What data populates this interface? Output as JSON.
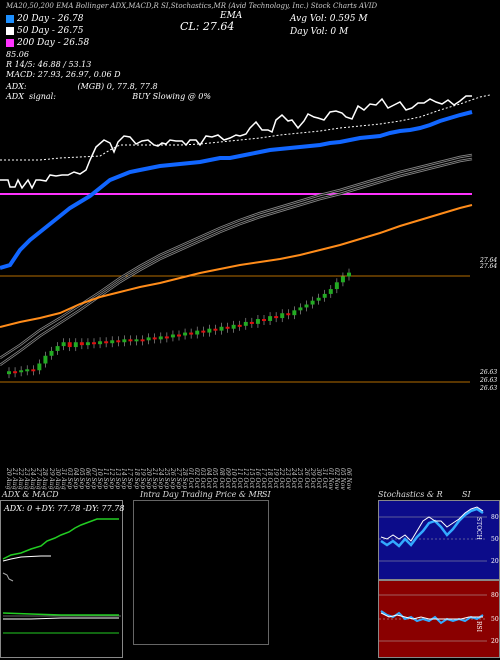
{
  "header": {
    "topline": "MA20,50,200 EMA Bollinger ADX,MACD,R SI,Stochastics,MR (Avid Technology, Inc.) Stock Charts AVID",
    "ema_title": "EMA",
    "close_label": "CL: 27.64",
    "avg_volume": "Avg Vol: 0.595 M",
    "day_volume": "Day Vol: 0   M"
  },
  "legend": [
    {
      "text": "20 Day - 26.78",
      "color": "#ffffff"
    },
    {
      "text": "50 Day - 26.75",
      "color": "#ffffff"
    },
    {
      "text": "200 Day - 26.58",
      "color": "#ffffff"
    }
  ],
  "indicators": {
    "line1": "85.06",
    "line2": "R 14/5: 46.88 / 53.13",
    "line3": "MACD: 27.93, 26.97, 0.06 D",
    "line4": "ADX:                    (MGB) 0, 77.8, 77.8",
    "line5": "ADX  signal:                              BUY Slowing @ 0%"
  },
  "price_axis": {
    "label_top": "27.64",
    "label_top2": "27.64",
    "label_b1": "26.63",
    "label_b2": "26.63",
    "label_b3": "26.63"
  },
  "dates": [
    "20 Aug",
    "21 Aug",
    "22 Aug",
    "23 Aug",
    "24 Aug",
    "27 Aug",
    "28 Aug",
    "29 Aug",
    "30 Aug",
    "31 Aug",
    "03 Sep",
    "04 Sep",
    "05 Sep",
    "06 Sep",
    "07 Sep",
    "10 Sep",
    "11 Sep",
    "12 Sep",
    "13 Sep",
    "14 Sep",
    "17 Sep",
    "18 Sep",
    "19 Sep",
    "20 Sep",
    "21 Sep",
    "24 Sep",
    "25 Sep",
    "26 Sep",
    "27 Sep",
    "28 Sep",
    "01 Oct",
    "02 Oct",
    "03 Oct",
    "04 Oct",
    "05 Oct",
    "08 Oct",
    "09 Oct",
    "10 Oct",
    "11 Oct",
    "12 Oct",
    "15 Oct",
    "16 Oct",
    "17 Oct",
    "18 Oct",
    "19 Oct",
    "22 Oct",
    "23 Oct",
    "24 Oct",
    "25 Oct",
    "26 Oct",
    "29 Oct",
    "30 Oct",
    "31 Oct",
    "01 Nov",
    "02 Nov",
    "05 Nov",
    "06 Nov"
  ],
  "panels": {
    "adx": {
      "title": "ADX  & MACD",
      "values": "ADX: 0  +DY: 77.78  -DY: 77.78"
    },
    "intra": {
      "title": "Intra  Day Trading Price  & MR",
      "suffix": "SI"
    },
    "stoch": {
      "title": "Stochastics & R",
      "suffix": "SI"
    }
  },
  "stoch_axis": {
    "upper": [
      "80",
      "50",
      "20"
    ],
    "upper_label": "STOCH",
    "lower": [
      "80",
      "50",
      "20"
    ],
    "lower_label": "RSI"
  },
  "chart_data": {
    "type": "candlestick",
    "candles": [
      {
        "o": 26.59,
        "c": 26.62
      },
      {
        "o": 26.62,
        "c": 26.6
      },
      {
        "o": 26.61,
        "c": 26.63
      },
      {
        "o": 26.63,
        "c": 26.64
      },
      {
        "o": 26.64,
        "c": 26.63
      },
      {
        "o": 26.63,
        "c": 26.7
      },
      {
        "o": 26.7,
        "c": 26.78
      },
      {
        "o": 26.78,
        "c": 26.83
      },
      {
        "o": 26.83,
        "c": 26.88
      },
      {
        "o": 26.88,
        "c": 26.92
      },
      {
        "o": 26.92,
        "c": 26.87
      },
      {
        "o": 26.87,
        "c": 26.92
      },
      {
        "o": 26.92,
        "c": 26.89
      },
      {
        "o": 26.89,
        "c": 26.92
      },
      {
        "o": 26.92,
        "c": 26.9
      },
      {
        "o": 26.9,
        "c": 26.93
      },
      {
        "o": 26.93,
        "c": 26.91
      },
      {
        "o": 26.91,
        "c": 26.94
      },
      {
        "o": 26.94,
        "c": 26.92
      },
      {
        "o": 26.92,
        "c": 26.95
      },
      {
        "o": 26.95,
        "c": 26.93
      },
      {
        "o": 26.93,
        "c": 26.95
      },
      {
        "o": 26.95,
        "c": 26.94
      },
      {
        "o": 26.94,
        "c": 26.97
      },
      {
        "o": 26.97,
        "c": 26.95
      },
      {
        "o": 26.95,
        "c": 26.98
      },
      {
        "o": 26.98,
        "c": 26.97
      },
      {
        "o": 26.97,
        "c": 27.0
      },
      {
        "o": 27.0,
        "c": 26.99
      },
      {
        "o": 26.99,
        "c": 27.02
      },
      {
        "o": 27.02,
        "c": 27.0
      },
      {
        "o": 27.0,
        "c": 27.04
      },
      {
        "o": 27.04,
        "c": 27.02
      },
      {
        "o": 27.02,
        "c": 27.06
      },
      {
        "o": 27.06,
        "c": 27.04
      },
      {
        "o": 27.04,
        "c": 27.08
      },
      {
        "o": 27.08,
        "c": 27.06
      },
      {
        "o": 27.06,
        "c": 27.1
      },
      {
        "o": 27.1,
        "c": 27.09
      },
      {
        "o": 27.09,
        "c": 27.13
      },
      {
        "o": 27.13,
        "c": 27.11
      },
      {
        "o": 27.11,
        "c": 27.16
      },
      {
        "o": 27.16,
        "c": 27.14
      },
      {
        "o": 27.14,
        "c": 27.19
      },
      {
        "o": 27.19,
        "c": 27.17
      },
      {
        "o": 27.17,
        "c": 27.22
      },
      {
        "o": 27.22,
        "c": 27.2
      },
      {
        "o": 27.2,
        "c": 27.25
      },
      {
        "o": 27.25,
        "c": 27.28
      },
      {
        "o": 27.28,
        "c": 27.31
      },
      {
        "o": 27.31,
        "c": 27.35
      },
      {
        "o": 27.35,
        "c": 27.38
      },
      {
        "o": 27.38,
        "c": 27.42
      },
      {
        "o": 27.42,
        "c": 27.47
      },
      {
        "o": 27.47,
        "c": 27.54
      },
      {
        "o": 27.54,
        "c": 27.6
      },
      {
        "o": 27.6,
        "c": 27.64
      }
    ],
    "ylim": [
      26.55,
      27.75
    ],
    "colors": {
      "up": "#22aa22",
      "down": "#dd1111",
      "ema20": "#ffffff",
      "ema200": "#1166ff",
      "ma": "#ff8c1a",
      "pink": "#ff33ff"
    }
  }
}
